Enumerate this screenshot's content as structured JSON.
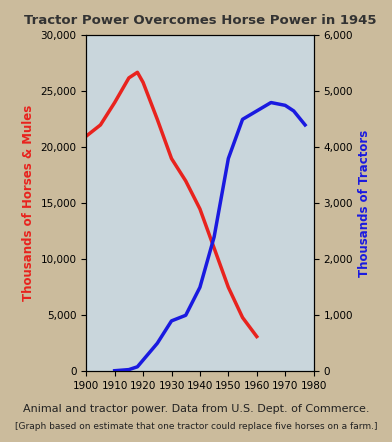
{
  "chart_data": {
    "type": "line",
    "title": "Tractor Power Overcomes Horse Power in 1945",
    "caption": "Animal and tractor power. Data from U.S. Dept. of Commerce.",
    "note": "[Graph based on estimate that one tractor could replace five horses on a farm.]",
    "y_label": "Thousands of Horses & Mules",
    "y2_label": "Thousands of Tractors",
    "x": [
      1900,
      1905,
      1910,
      1915,
      1918,
      1920,
      1925,
      1930,
      1935,
      1940,
      1945,
      1950,
      1955,
      1960,
      1965,
      1970,
      1973,
      1977
    ],
    "series": [
      {
        "name": "Thousands of Horses & Mules",
        "color": "#e8231e",
        "axis": "y",
        "values": [
          21000,
          22000,
          24000,
          26200,
          26700,
          25800,
          22500,
          19000,
          17000,
          14500,
          11000,
          7500,
          4800,
          3100,
          null,
          null,
          null,
          null
        ]
      },
      {
        "name": "Thousands of Tractors",
        "color": "#1a1ae0",
        "axis": "y2",
        "values": [
          null,
          null,
          10,
          30,
          80,
          200,
          500,
          900,
          1000,
          1500,
          2400,
          3800,
          4500,
          4650,
          4800,
          4750,
          4650,
          4400
        ]
      }
    ],
    "xlim": [
      1900,
      1980
    ],
    "xticks": [
      1900,
      1910,
      1920,
      1930,
      1940,
      1950,
      1960,
      1970,
      1980
    ],
    "ylim": [
      0,
      30000
    ],
    "yticks": [
      0,
      {
        "value": 5000,
        "label": "5,000"
      },
      {
        "value": 10000,
        "label": "10,000"
      },
      {
        "value": 15000,
        "label": "15,000"
      },
      {
        "value": 20000,
        "label": "20,000"
      },
      {
        "value": 25000,
        "label": "25,000"
      },
      {
        "value": 30000,
        "label": "30,000"
      }
    ],
    "y2lim": [
      0,
      6000
    ],
    "y2ticks": [
      0,
      {
        "value": 1000,
        "label": "1,000"
      },
      {
        "value": 2000,
        "label": "2,000"
      },
      {
        "value": 3000,
        "label": "3,000"
      },
      {
        "value": 4000,
        "label": "4,000"
      },
      {
        "value": 5000,
        "label": "5,000"
      },
      {
        "value": 6000,
        "label": "6,000"
      }
    ],
    "grid": false
  }
}
